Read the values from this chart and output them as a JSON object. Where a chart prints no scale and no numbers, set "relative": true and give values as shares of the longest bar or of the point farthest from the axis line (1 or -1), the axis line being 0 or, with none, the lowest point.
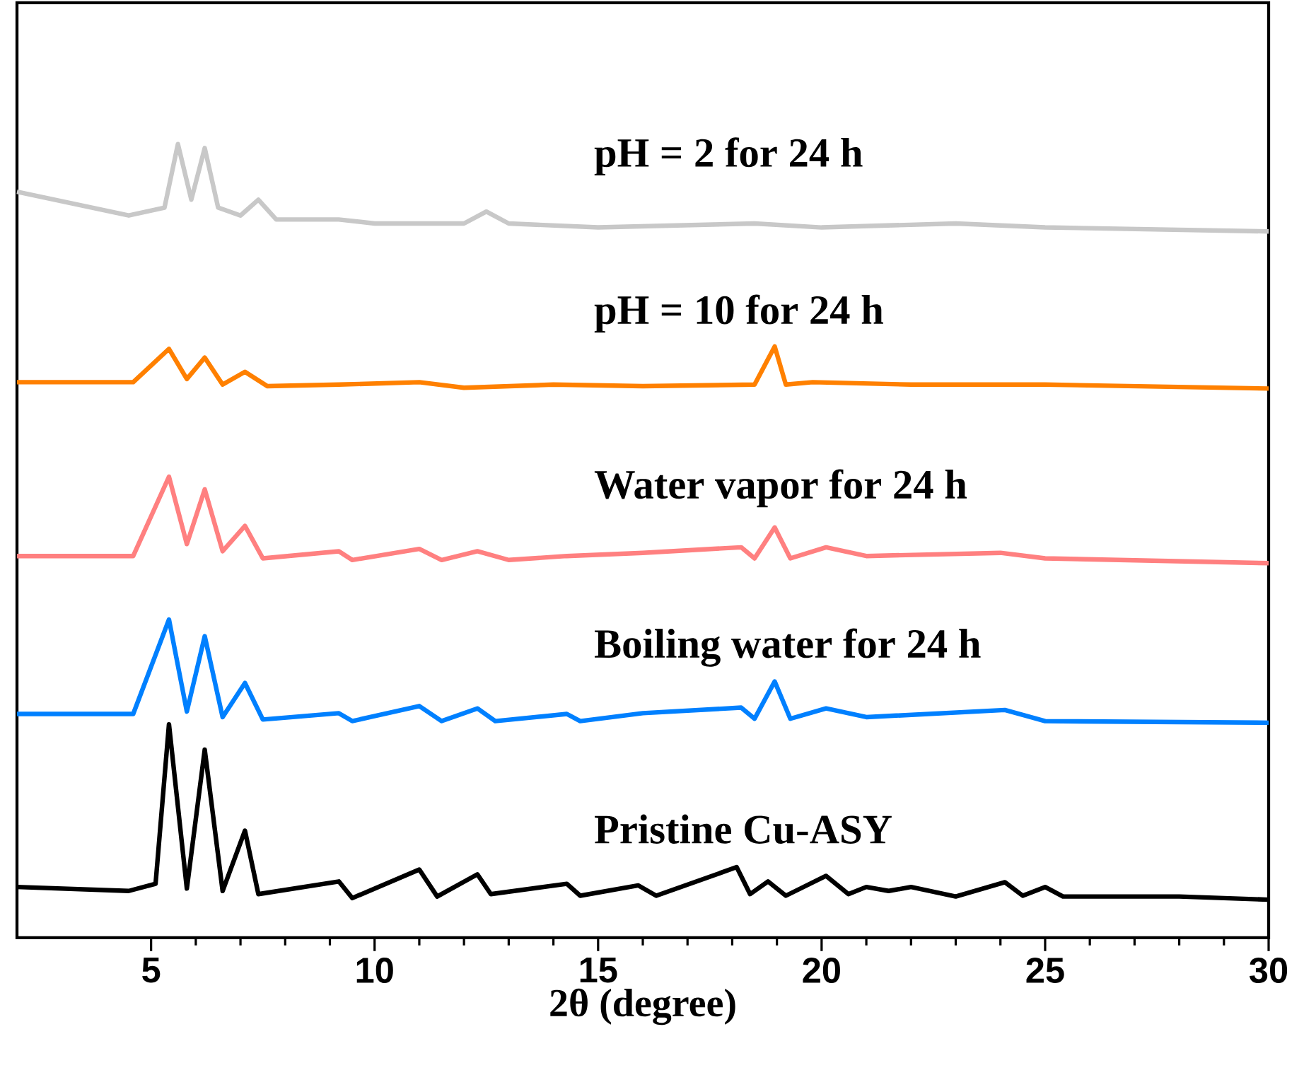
{
  "chart_data": {
    "type": "line",
    "xlabel": "2θ  (degree)",
    "relative": true,
    "xlim": [
      2,
      30
    ],
    "xticks": [
      5,
      10,
      15,
      20,
      25,
      30
    ],
    "series": [
      {
        "name": "pH = 2 for 24 h",
        "color": "#c8c8c8",
        "x": [
          2,
          4.5,
          5.3,
          5.6,
          5.9,
          6.2,
          6.5,
          7.0,
          7.4,
          7.8,
          9.2,
          10,
          12,
          12.5,
          13,
          15,
          18.5,
          20,
          23,
          25,
          30
        ],
        "values": [
          0.94,
          0.91,
          0.92,
          1.0,
          0.93,
          0.995,
          0.92,
          0.91,
          0.93,
          0.905,
          0.905,
          0.9,
          0.9,
          0.915,
          0.9,
          0.895,
          0.9,
          0.895,
          0.9,
          0.895,
          0.89
        ]
      },
      {
        "name": "pH = 10 for 24 h",
        "color": "#ff8000",
        "x": [
          2,
          4.6,
          5.4,
          5.8,
          6.2,
          6.6,
          7.1,
          7.6,
          9.2,
          11,
          12,
          14,
          16,
          18.5,
          18.95,
          19.2,
          19.8,
          22,
          25,
          30
        ],
        "values": [
          0.7,
          0.7,
          0.742,
          0.704,
          0.731,
          0.697,
          0.713,
          0.695,
          0.697,
          0.7,
          0.693,
          0.697,
          0.695,
          0.697,
          0.745,
          0.697,
          0.7,
          0.697,
          0.697,
          0.692
        ]
      },
      {
        "name": "Water vapor for 24 h",
        "color": "#ff8080",
        "x": [
          2,
          4.6,
          5.4,
          5.8,
          6.2,
          6.6,
          7.1,
          7.5,
          9.2,
          9.5,
          11,
          11.5,
          12.3,
          13,
          14.3,
          16,
          18.2,
          18.5,
          18.95,
          19.3,
          20.1,
          21,
          24,
          25,
          30
        ],
        "values": [
          0.481,
          0.481,
          0.581,
          0.496,
          0.565,
          0.487,
          0.519,
          0.478,
          0.487,
          0.476,
          0.49,
          0.476,
          0.487,
          0.476,
          0.481,
          0.485,
          0.492,
          0.478,
          0.517,
          0.478,
          0.492,
          0.481,
          0.485,
          0.478,
          0.472
        ]
      },
      {
        "name": "Boiling water for 24 h",
        "color": "#0080ff",
        "x": [
          2,
          4.6,
          5.4,
          5.8,
          6.2,
          6.6,
          7.1,
          7.5,
          9.2,
          9.5,
          11,
          11.5,
          12.3,
          12.7,
          14.3,
          14.6,
          16,
          18.2,
          18.5,
          18.95,
          19.3,
          20.1,
          21,
          24.1,
          25,
          30
        ],
        "values": [
          0.282,
          0.282,
          0.401,
          0.285,
          0.38,
          0.278,
          0.321,
          0.275,
          0.283,
          0.273,
          0.292,
          0.273,
          0.289,
          0.273,
          0.282,
          0.273,
          0.283,
          0.29,
          0.276,
          0.323,
          0.276,
          0.289,
          0.278,
          0.287,
          0.273,
          0.271
        ]
      },
      {
        "name": "Pristine Cu-ASY",
        "color": "#000000",
        "x": [
          2,
          4.5,
          5.1,
          5.4,
          5.8,
          6.2,
          6.6,
          7.1,
          7.4,
          9.2,
          9.5,
          11,
          11.4,
          12.3,
          12.6,
          14.3,
          14.6,
          15.9,
          16.3,
          18.1,
          18.4,
          18.8,
          19.2,
          20.1,
          20.6,
          21,
          21.5,
          22,
          23,
          24.1,
          24.5,
          25,
          25.4,
          28,
          30
        ],
        "values": [
          0.064,
          0.059,
          0.068,
          0.269,
          0.062,
          0.237,
          0.059,
          0.135,
          0.055,
          0.071,
          0.05,
          0.086,
          0.052,
          0.08,
          0.055,
          0.068,
          0.053,
          0.066,
          0.053,
          0.089,
          0.055,
          0.071,
          0.053,
          0.078,
          0.055,
          0.064,
          0.059,
          0.064,
          0.052,
          0.07,
          0.053,
          0.064,
          0.052,
          0.052,
          0.048
        ]
      }
    ]
  }
}
